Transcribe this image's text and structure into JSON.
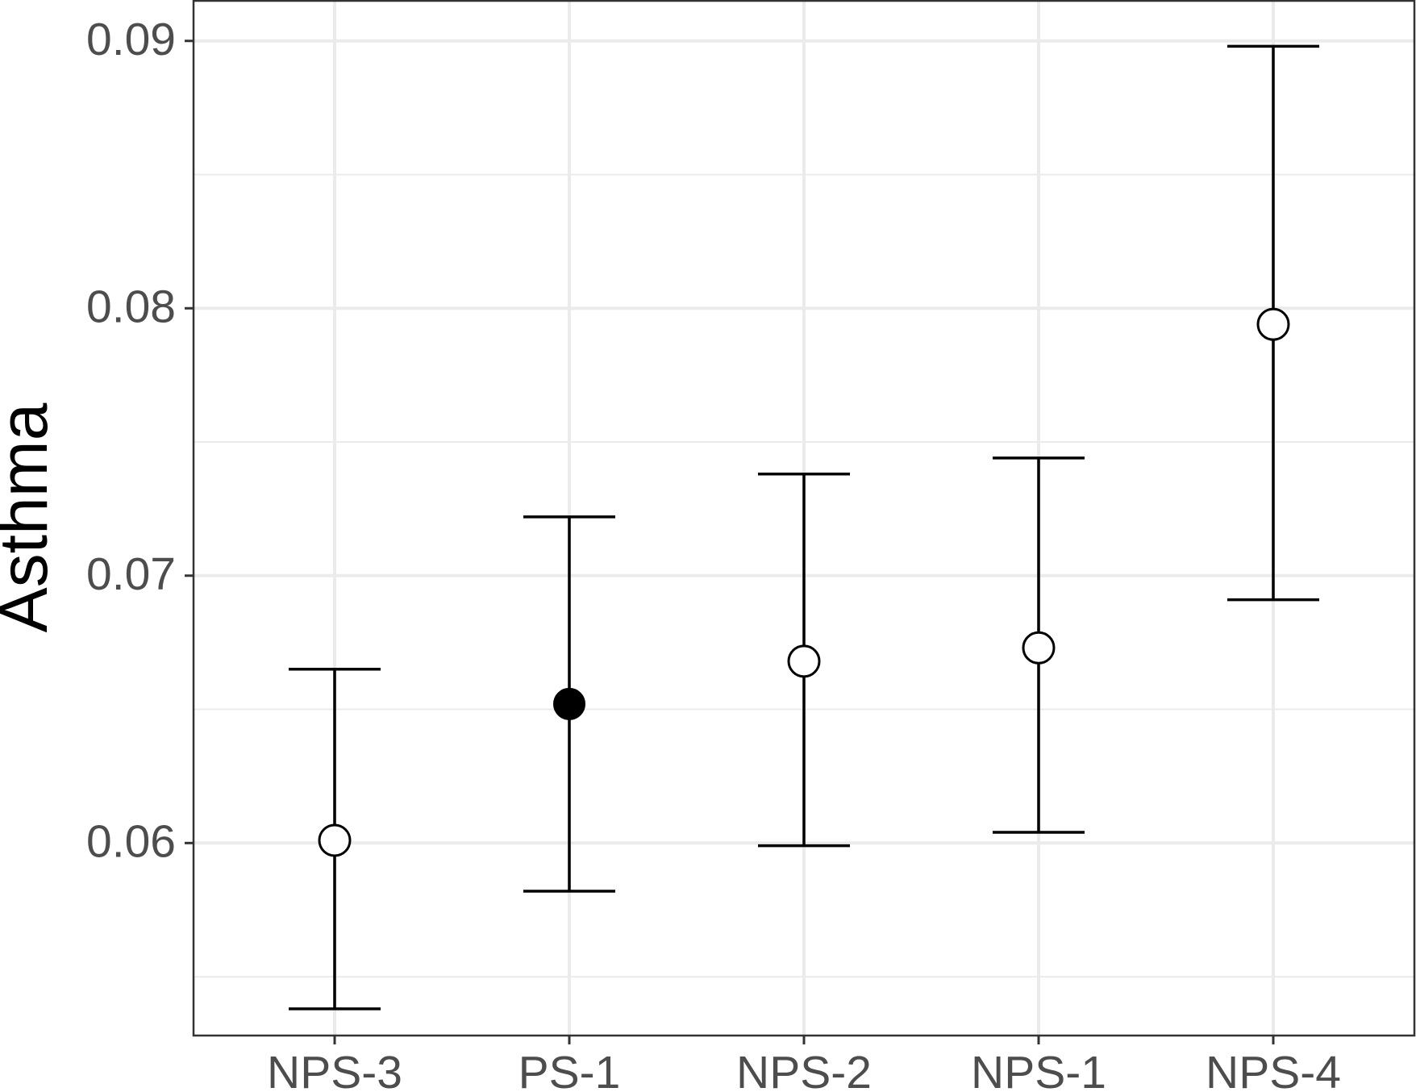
{
  "chart_data": {
    "type": "scatter",
    "subtype": "point-with-error-bars",
    "title": "",
    "xlabel": "",
    "ylabel": "Asthma",
    "categories": [
      "NPS-3",
      "PS-1",
      "NPS-2",
      "NPS-1",
      "NPS-4"
    ],
    "points": [
      {
        "category": "NPS-3",
        "estimate": 0.0601,
        "lower": 0.0538,
        "upper": 0.0665,
        "filled": false
      },
      {
        "category": "PS-1",
        "estimate": 0.0652,
        "lower": 0.0582,
        "upper": 0.0722,
        "filled": true
      },
      {
        "category": "NPS-2",
        "estimate": 0.0668,
        "lower": 0.0599,
        "upper": 0.0738,
        "filled": false
      },
      {
        "category": "NPS-1",
        "estimate": 0.0673,
        "lower": 0.0604,
        "upper": 0.0744,
        "filled": false
      },
      {
        "category": "NPS-4",
        "estimate": 0.0794,
        "lower": 0.0691,
        "upper": 0.0898,
        "filled": false
      }
    ],
    "yticks": [
      0.06,
      0.07,
      0.08,
      0.09
    ],
    "ytick_labels": [
      "0.06",
      "0.07",
      "0.08",
      "0.09"
    ],
    "ylim": [
      0.0528,
      0.0915
    ],
    "grid": true,
    "legend": "none",
    "colors": {
      "point": "#000000",
      "errorbar": "#000000",
      "grid": "#ebebeb",
      "panel_border": "#333333",
      "tick_label": "#4d4d4d",
      "background": "#ffffff"
    }
  }
}
